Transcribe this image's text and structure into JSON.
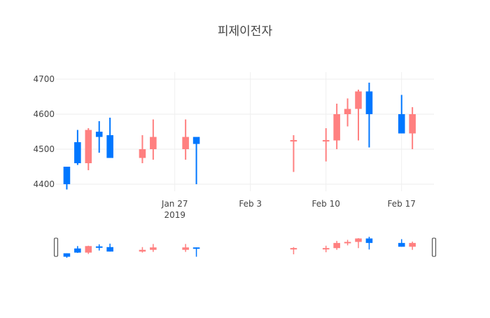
{
  "chart_data": {
    "type": "candlestick",
    "title": "피제이전자",
    "xlabel": "",
    "ylabel": "",
    "ylim": [
      4380,
      4720
    ],
    "xlim": [
      "2019-01-16",
      "2019-02-20"
    ],
    "grid": true,
    "range_slider": true,
    "x_ticks": [
      {
        "date": "2019-01-27",
        "label": "Jan 27",
        "sublabel": "2019"
      },
      {
        "date": "2019-02-03",
        "label": "Feb 3",
        "sublabel": ""
      },
      {
        "date": "2019-02-10",
        "label": "Feb 10",
        "sublabel": ""
      },
      {
        "date": "2019-02-17",
        "label": "Feb 17",
        "sublabel": ""
      }
    ],
    "y_ticks": [
      {
        "value": 4400,
        "label": "4400"
      },
      {
        "value": 4500,
        "label": "4500"
      },
      {
        "value": 4600,
        "label": "4600"
      },
      {
        "value": 4700,
        "label": "4700"
      }
    ],
    "colors": {
      "increasing": "#ff8080",
      "decreasing": "#0077ff"
    },
    "candles": [
      {
        "date": "2019-01-17",
        "open": 4450,
        "high": 4450,
        "low": 4385,
        "close": 4400
      },
      {
        "date": "2019-01-18",
        "open": 4520,
        "high": 4555,
        "low": 4455,
        "close": 4460
      },
      {
        "date": "2019-01-19",
        "open": 4460,
        "high": 4560,
        "low": 4440,
        "close": 4555
      },
      {
        "date": "2019-01-20",
        "open": 4550,
        "high": 4580,
        "low": 4490,
        "close": 4535
      },
      {
        "date": "2019-01-21",
        "open": 4540,
        "high": 4590,
        "low": 4475,
        "close": 4475
      },
      {
        "date": "2019-01-24",
        "open": 4475,
        "high": 4540,
        "low": 4460,
        "close": 4500
      },
      {
        "date": "2019-01-25",
        "open": 4500,
        "high": 4585,
        "low": 4470,
        "close": 4535
      },
      {
        "date": "2019-01-28",
        "open": 4500,
        "high": 4585,
        "low": 4470,
        "close": 4535
      },
      {
        "date": "2019-01-29",
        "open": 4535,
        "high": 4535,
        "low": 4400,
        "close": 4515
      },
      {
        "date": "2019-02-07",
        "open": 4522,
        "high": 4540,
        "low": 4435,
        "close": 4526
      },
      {
        "date": "2019-02-10",
        "open": 4522,
        "high": 4560,
        "low": 4465,
        "close": 4526
      },
      {
        "date": "2019-02-11",
        "open": 4525,
        "high": 4630,
        "low": 4500,
        "close": 4600
      },
      {
        "date": "2019-02-12",
        "open": 4600,
        "high": 4645,
        "low": 4565,
        "close": 4615
      },
      {
        "date": "2019-02-13",
        "open": 4615,
        "high": 4670,
        "low": 4525,
        "close": 4665
      },
      {
        "date": "2019-02-14",
        "open": 4665,
        "high": 4690,
        "low": 4505,
        "close": 4600
      },
      {
        "date": "2019-02-17",
        "open": 4600,
        "high": 4655,
        "low": 4545,
        "close": 4545
      },
      {
        "date": "2019-02-18",
        "open": 4545,
        "high": 4620,
        "low": 4500,
        "close": 4600
      }
    ]
  }
}
